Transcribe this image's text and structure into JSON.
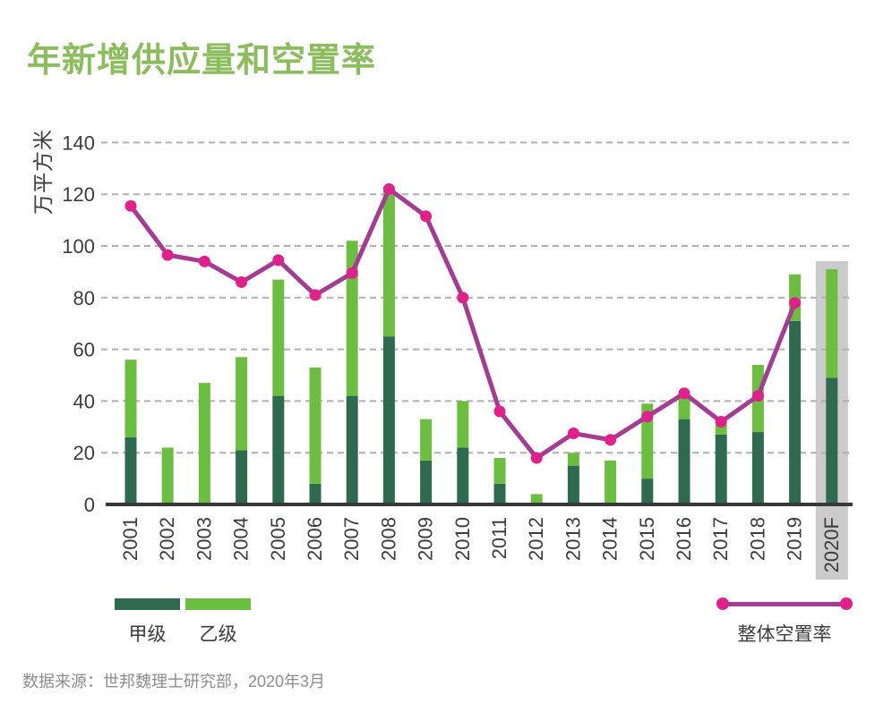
{
  "title": "年新增供应量和空置率",
  "source": "数据来源：世邦魏理士研究部，2020年3月",
  "legend": {
    "grade_a": "甲级",
    "grade_b": "乙级",
    "vacancy": "整体空置率"
  },
  "colors": {
    "title_green": "#8CBD5C",
    "grade_a": "#2E6B4E",
    "grade_b": "#6CBE40",
    "line": "#A63B95",
    "dot": "#E2208C",
    "axis_text": "#3C3C3C",
    "gridline": "#B0B0B0",
    "axis_line": "#383838",
    "forecast_band": "#CBCBCB",
    "source_text": "#8D8D8D"
  },
  "chart_data": {
    "type": "bar",
    "subtype": "stacked bars with overlaid line",
    "ylabel": "万平方米",
    "xlabel": "",
    "ylim": [
      0,
      140
    ],
    "ytick_step": 20,
    "yticks": [
      0,
      20,
      40,
      60,
      80,
      100,
      120,
      140
    ],
    "grid": "dashed horizontal gridlines",
    "xtick_rotation": -90,
    "legend_position": "bottom",
    "categories": [
      "2001",
      "2002",
      "2003",
      "2004",
      "2005",
      "2006",
      "2007",
      "2008",
      "2009",
      "2010",
      "2011",
      "2012",
      "2013",
      "2014",
      "2015",
      "2016",
      "2017",
      "2018",
      "2019",
      "2020F"
    ],
    "forecast_category": "2020F",
    "series": [
      {
        "name": "甲级",
        "type": "bar",
        "stacked": true,
        "color_key": "grade_a",
        "values": [
          26,
          0,
          0,
          21,
          42,
          8,
          42,
          65,
          17,
          22,
          8,
          0,
          15,
          0,
          10,
          33,
          27,
          28,
          71,
          49
        ]
      },
      {
        "name": "乙级",
        "type": "bar",
        "stacked": true,
        "color_key": "grade_b",
        "values": [
          30,
          22,
          47,
          36,
          45,
          45,
          60,
          58,
          16,
          18,
          10,
          4,
          5,
          17,
          29,
          9,
          4,
          26,
          18,
          42
        ]
      },
      {
        "name": "整体空置率",
        "type": "line",
        "color_key": "line",
        "marker_color_key": "dot",
        "values": [
          115.5,
          96.5,
          94,
          86,
          94.5,
          81,
          89.5,
          122,
          111.5,
          80,
          36,
          18,
          27.5,
          25,
          34,
          43,
          32,
          42,
          78,
          null
        ]
      }
    ]
  }
}
